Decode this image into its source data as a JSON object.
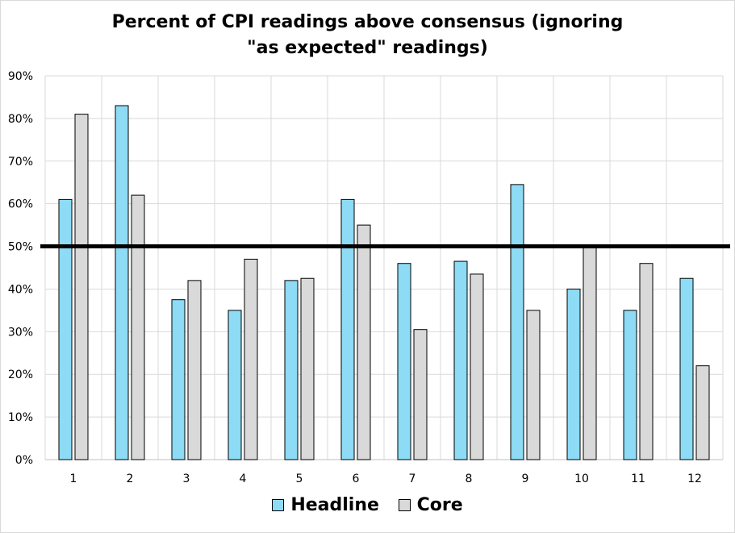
{
  "chart_data": {
    "type": "bar",
    "title": "Percent of CPI readings above consensus (ignoring \"as expected\" readings)",
    "xlabel": "",
    "ylabel": "",
    "categories": [
      "1",
      "2",
      "3",
      "4",
      "5",
      "6",
      "7",
      "8",
      "9",
      "10",
      "11",
      "12"
    ],
    "series": [
      {
        "name": "Headline",
        "color": "#8DDBF5",
        "values": [
          61,
          83,
          37.5,
          35,
          42,
          61,
          46,
          46.5,
          64.5,
          40,
          35,
          42.5
        ]
      },
      {
        "name": "Core",
        "color": "#D9D9D9",
        "values": [
          81,
          62,
          42,
          47,
          42.5,
          55,
          30.5,
          43.5,
          35,
          50,
          46,
          22
        ]
      }
    ],
    "ylim": [
      0,
      90
    ],
    "yticks": [
      0,
      10,
      20,
      30,
      40,
      50,
      60,
      70,
      80,
      90
    ],
    "ytick_labels": [
      "0%",
      "10%",
      "20%",
      "30%",
      "40%",
      "50%",
      "60%",
      "70%",
      "80%",
      "90%"
    ],
    "reference_line": {
      "value": 50,
      "color": "#000000"
    },
    "grid": true,
    "legend_position": "bottom"
  }
}
